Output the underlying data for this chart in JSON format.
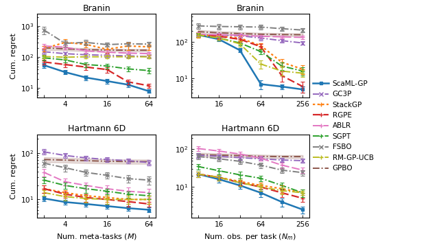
{
  "methods": [
    "ScaML-GP",
    "GC3P",
    "StackGP",
    "RGPE",
    "ABLR",
    "SGPT",
    "FSBO",
    "RM-GP-UCB",
    "GPBO"
  ],
  "method_styles": {
    "ScaML-GP": {
      "color": "#1f77b4",
      "ls": "solid",
      "marker": "s",
      "ms": 3.5,
      "lw": 1.8
    },
    "GC3P": {
      "color": "#9467bd",
      "ls": "dashdot",
      "marker": "x",
      "ms": 4,
      "lw": 1.4
    },
    "StackGP": {
      "color": "#ff7f0e",
      "ls": "dotted",
      "marker": "+",
      "ms": 5,
      "lw": 1.6
    },
    "RGPE": {
      "color": "#d62728",
      "ls": "dashed",
      "marker": "+",
      "ms": 5,
      "lw": 1.6
    },
    "ABLR": {
      "color": "#e377c2",
      "ls": "dashed",
      "marker": "+",
      "ms": 5,
      "lw": 1.4
    },
    "SGPT": {
      "color": "#2ca02c",
      "ls": "dashdot",
      "marker": "+",
      "ms": 5,
      "lw": 1.4
    },
    "FSBO": {
      "color": "#7f7f7f",
      "ls": "dashdot",
      "marker": "x",
      "ms": 4,
      "lw": 1.4
    },
    "RM-GP-UCB": {
      "color": "#bcbd22",
      "ls": "dashdot",
      "marker": "+",
      "ms": 5,
      "lw": 1.4
    },
    "GPBO": {
      "color": "#8c564b",
      "ls": "dashdot",
      "marker": null,
      "ms": 4,
      "lw": 1.4
    }
  },
  "branin_M_x": [
    2,
    4,
    8,
    16,
    32,
    64
  ],
  "branin_M_data": {
    "ScaML-GP": [
      55,
      33,
      22,
      17,
      13,
      8
    ],
    "GC3P": [
      150,
      130,
      120,
      115,
      110,
      105
    ],
    "StackGP": [
      190,
      300,
      260,
      180,
      230,
      215
    ],
    "RGPE": [
      70,
      58,
      48,
      40,
      16,
      12
    ],
    "ABLR": [
      230,
      210,
      160,
      145,
      135,
      130
    ],
    "SGPT": [
      95,
      82,
      58,
      52,
      42,
      37
    ],
    "FSBO": [
      750,
      280,
      300,
      255,
      270,
      265
    ],
    "RM-GP-UCB": [
      105,
      100,
      103,
      103,
      103,
      103
    ],
    "GPBO": [
      200,
      185,
      175,
      170,
      168,
      168
    ]
  },
  "branin_M_err": {
    "ScaML-GP": [
      10,
      5,
      4,
      3,
      2,
      1
    ],
    "GC3P": [
      25,
      18,
      16,
      15,
      14,
      13
    ],
    "StackGP": [
      35,
      80,
      55,
      42,
      60,
      42
    ],
    "RGPE": [
      12,
      10,
      9,
      8,
      3,
      2
    ],
    "ABLR": [
      35,
      28,
      22,
      20,
      16,
      15
    ],
    "SGPT": [
      16,
      13,
      11,
      9,
      8,
      7
    ],
    "FSBO": [
      200,
      65,
      55,
      42,
      42,
      40
    ],
    "RM-GP-UCB": [
      15,
      13,
      13,
      13,
      13,
      13
    ],
    "GPBO": [
      28,
      22,
      19,
      17,
      16,
      16
    ]
  },
  "branin_Nm_x": [
    8,
    16,
    32,
    64,
    128,
    256
  ],
  "branin_Nm_data": {
    "ScaML-GP": [
      160,
      120,
      60,
      7,
      6,
      5
    ],
    "GC3P": [
      160,
      155,
      150,
      130,
      110,
      95
    ],
    "StackGP": [
      160,
      145,
      130,
      80,
      28,
      18
    ],
    "RGPE": [
      160,
      145,
      120,
      75,
      12,
      6
    ],
    "ABLR": [
      165,
      160,
      155,
      145,
      140,
      135
    ],
    "SGPT": [
      155,
      130,
      95,
      55,
      22,
      16
    ],
    "FSBO": [
      280,
      270,
      265,
      260,
      235,
      215
    ],
    "RM-GP-UCB": [
      160,
      130,
      90,
      25,
      16,
      14
    ],
    "GPBO": [
      195,
      180,
      172,
      165,
      162,
      160
    ]
  },
  "branin_Nm_err": {
    "ScaML-GP": [
      18,
      14,
      8,
      2,
      1,
      1
    ],
    "GC3P": [
      22,
      22,
      20,
      17,
      13,
      11
    ],
    "StackGP": [
      28,
      22,
      18,
      14,
      6,
      5
    ],
    "RGPE": [
      22,
      20,
      17,
      13,
      4,
      2
    ],
    "ABLR": [
      20,
      18,
      16,
      14,
      13,
      13
    ],
    "SGPT": [
      20,
      17,
      13,
      9,
      5,
      4
    ],
    "FSBO": [
      50,
      48,
      42,
      38,
      32,
      28
    ],
    "RM-GP-UCB": [
      22,
      17,
      14,
      6,
      4,
      3
    ],
    "GPBO": [
      22,
      20,
      18,
      16,
      15,
      14
    ]
  },
  "hartmann_M_x": [
    2,
    4,
    8,
    16,
    32,
    64
  ],
  "hartmann_M_data": {
    "ScaML-GP": [
      10.5,
      8.8,
      8.0,
      7.2,
      6.5,
      6.0
    ],
    "GC3P": [
      105,
      88,
      78,
      72,
      68,
      62
    ],
    "StackGP": [
      17,
      14,
      12,
      11,
      10,
      10
    ],
    "RGPE": [
      17,
      13,
      11,
      10,
      9,
      8
    ],
    "ABLR": [
      38,
      24,
      20,
      17,
      15,
      14
    ],
    "SGPT": [
      26,
      20,
      17,
      15,
      13,
      12
    ],
    "FSBO": [
      60,
      48,
      38,
      33,
      28,
      26
    ],
    "RM-GP-UCB": [
      14,
      11.5,
      10.5,
      10,
      10,
      10
    ],
    "GPBO": [
      72,
      70,
      68,
      66,
      65,
      65
    ]
  },
  "hartmann_M_err": {
    "ScaML-GP": [
      1.2,
      1.0,
      0.9,
      0.9,
      0.8,
      0.7
    ],
    "GC3P": [
      14,
      11,
      9,
      9,
      8,
      8
    ],
    "StackGP": [
      3,
      2,
      2,
      2,
      2,
      2
    ],
    "RGPE": [
      3,
      2,
      2,
      2,
      2,
      1
    ],
    "ABLR": [
      7,
      4,
      3,
      3,
      3,
      3
    ],
    "SGPT": [
      4,
      3,
      3,
      2,
      2,
      2
    ],
    "FSBO": [
      10,
      8,
      6,
      5,
      5,
      5
    ],
    "RM-GP-UCB": [
      2,
      2,
      2,
      2,
      2,
      2
    ],
    "GPBO": [
      9,
      8,
      8,
      7,
      7,
      7
    ]
  },
  "hartmann_Nm_x": [
    8,
    16,
    32,
    64,
    128,
    256
  ],
  "hartmann_Nm_data": {
    "ScaML-GP": [
      22,
      16,
      11,
      7,
      4,
      2.5
    ],
    "GC3P": [
      70,
      65,
      60,
      56,
      52,
      50
    ],
    "StackGP": [
      22,
      18,
      14,
      11,
      9,
      7
    ],
    "RGPE": [
      22,
      18,
      13,
      10,
      7,
      5
    ],
    "ABLR": [
      105,
      90,
      75,
      58,
      38,
      28
    ],
    "SGPT": [
      35,
      27,
      21,
      17,
      11,
      7
    ],
    "FSBO": [
      65,
      56,
      48,
      38,
      28,
      24
    ],
    "RM-GP-UCB": [
      22,
      18,
      13,
      10,
      8,
      7
    ],
    "GPBO": [
      72,
      70,
      68,
      65,
      64,
      64
    ]
  },
  "hartmann_Nm_err": {
    "ScaML-GP": [
      4,
      3,
      2,
      1.5,
      1,
      0.5
    ],
    "GC3P": [
      10,
      9,
      8,
      7,
      6,
      6
    ],
    "StackGP": [
      4,
      3,
      3,
      2,
      2,
      1.5
    ],
    "RGPE": [
      4,
      3,
      2,
      2,
      1.5,
      1
    ],
    "ABLR": [
      15,
      12,
      10,
      8,
      6,
      5
    ],
    "SGPT": [
      6,
      5,
      4,
      3,
      2,
      1.5
    ],
    "FSBO": [
      10,
      8,
      7,
      6,
      5,
      4
    ],
    "RM-GP-UCB": [
      4,
      3,
      2.5,
      2,
      1.5,
      1
    ],
    "GPBO": [
      9,
      8,
      7,
      7,
      6,
      6
    ]
  },
  "legend_labels": [
    "ScaML-GP",
    "GC3P",
    "StackGP",
    "RGPE",
    "ABLR",
    "SGPT",
    "FSBO",
    "RM-GP-UCB",
    "GPBO"
  ]
}
